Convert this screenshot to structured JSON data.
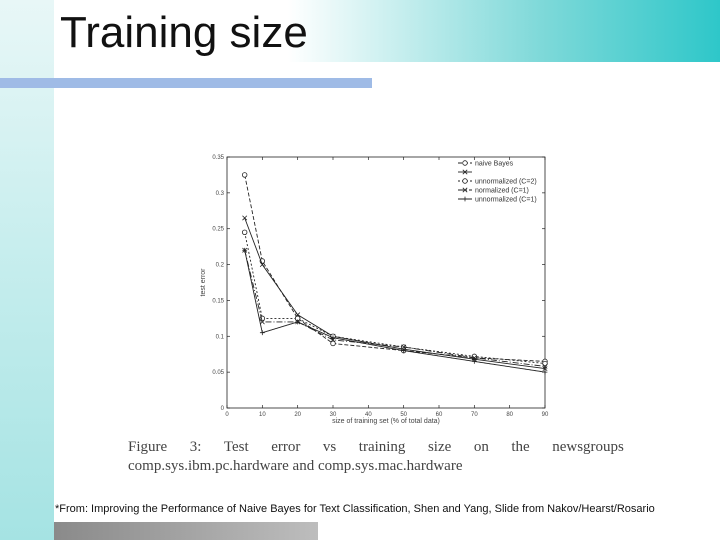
{
  "slide": {
    "title": "Training size",
    "footnote": "*From: Improving the Performance of Naive Bayes for Text Classification, Shen and Yang, Slide from Nakov/Hearst/Rosario"
  },
  "caption": {
    "line1_words": [
      "Figure",
      "3:",
      "Test",
      "error",
      "vs",
      "training",
      "size",
      "on",
      "the",
      "newsgroups"
    ],
    "line2": "comp.sys.ibm.pc.hardware and comp.sys.mac.hardware"
  },
  "colors": {
    "header_accent": "#2ec7c9",
    "underline": "#9fbbe6",
    "ink": "#222222"
  },
  "chart_data": {
    "type": "line",
    "xlabel": "size of training set (% of total data)",
    "ylabel": "test error",
    "xlim": [
      0,
      90
    ],
    "ylim": [
      0,
      0.35
    ],
    "xticks": [
      "0",
      "10",
      "20",
      "30",
      "40",
      "50",
      "60",
      "70",
      "80",
      "90"
    ],
    "yticks": [
      "0",
      "0.05",
      "0.1",
      "0.15",
      "0.2",
      "0.25",
      "0.3",
      "0.35"
    ],
    "legend_position": "top-right",
    "x": [
      5,
      10,
      20,
      30,
      50,
      70,
      90
    ],
    "series": [
      {
        "name": "naive Bayes",
        "marker": "o",
        "values": [
          0.325,
          0.205,
          0.125,
          0.09,
          0.08,
          0.07,
          0.065
        ]
      },
      {
        "name": "",
        "marker": "x",
        "values": [
          0.265,
          0.2,
          0.13,
          0.1,
          0.082,
          0.068,
          0.055
        ]
      },
      {
        "name": "unnormalized (C=2)",
        "marker": "o",
        "values": [
          0.245,
          0.125,
          0.125,
          0.1,
          0.085,
          0.072,
          0.062
        ]
      },
      {
        "name": "normalized (C=1)",
        "marker": "x",
        "values": [
          0.22,
          0.12,
          0.12,
          0.095,
          0.085,
          0.07,
          0.058
        ]
      },
      {
        "name": "unnormalized (C=1)",
        "marker": "+",
        "values": [
          0.22,
          0.105,
          0.12,
          0.098,
          0.08,
          0.065,
          0.05
        ]
      }
    ]
  }
}
